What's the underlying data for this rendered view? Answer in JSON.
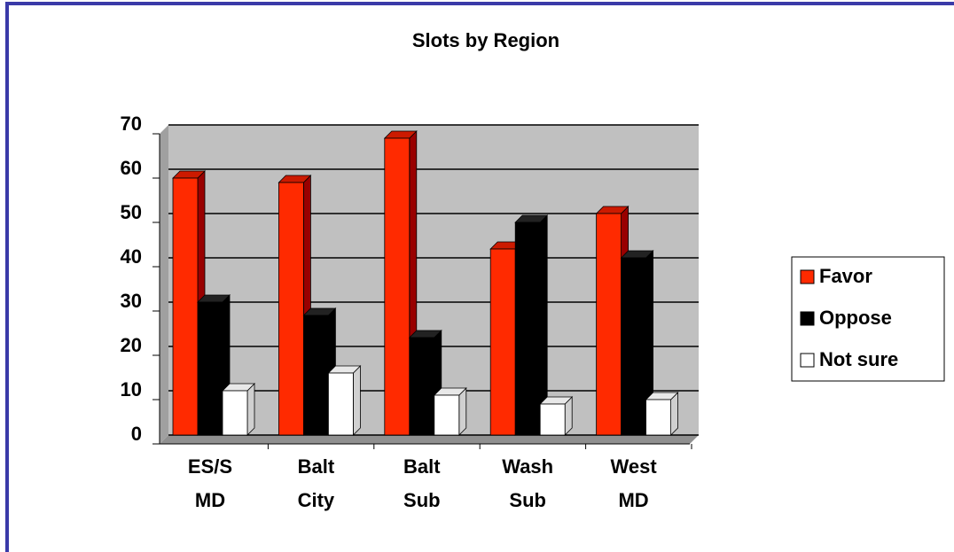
{
  "chart_data": {
    "type": "bar",
    "title": "Slots by Region",
    "categories": [
      "ES/S MD",
      "Balt City",
      "Balt Sub",
      "Wash Sub",
      "West MD"
    ],
    "series": [
      {
        "name": "Favor",
        "color": "#ff2a00",
        "values": [
          58,
          57,
          67,
          42,
          50
        ]
      },
      {
        "name": "Oppose",
        "color": "#000000",
        "values": [
          30,
          27,
          22,
          48,
          40
        ]
      },
      {
        "name": "Not sure",
        "color": "#ffffff",
        "values": [
          10,
          14,
          9,
          7,
          8
        ]
      }
    ],
    "ylim": [
      0,
      70
    ],
    "yticks": [
      0,
      10,
      20,
      30,
      40,
      50,
      60,
      70
    ],
    "grid": true,
    "legend": "right"
  }
}
